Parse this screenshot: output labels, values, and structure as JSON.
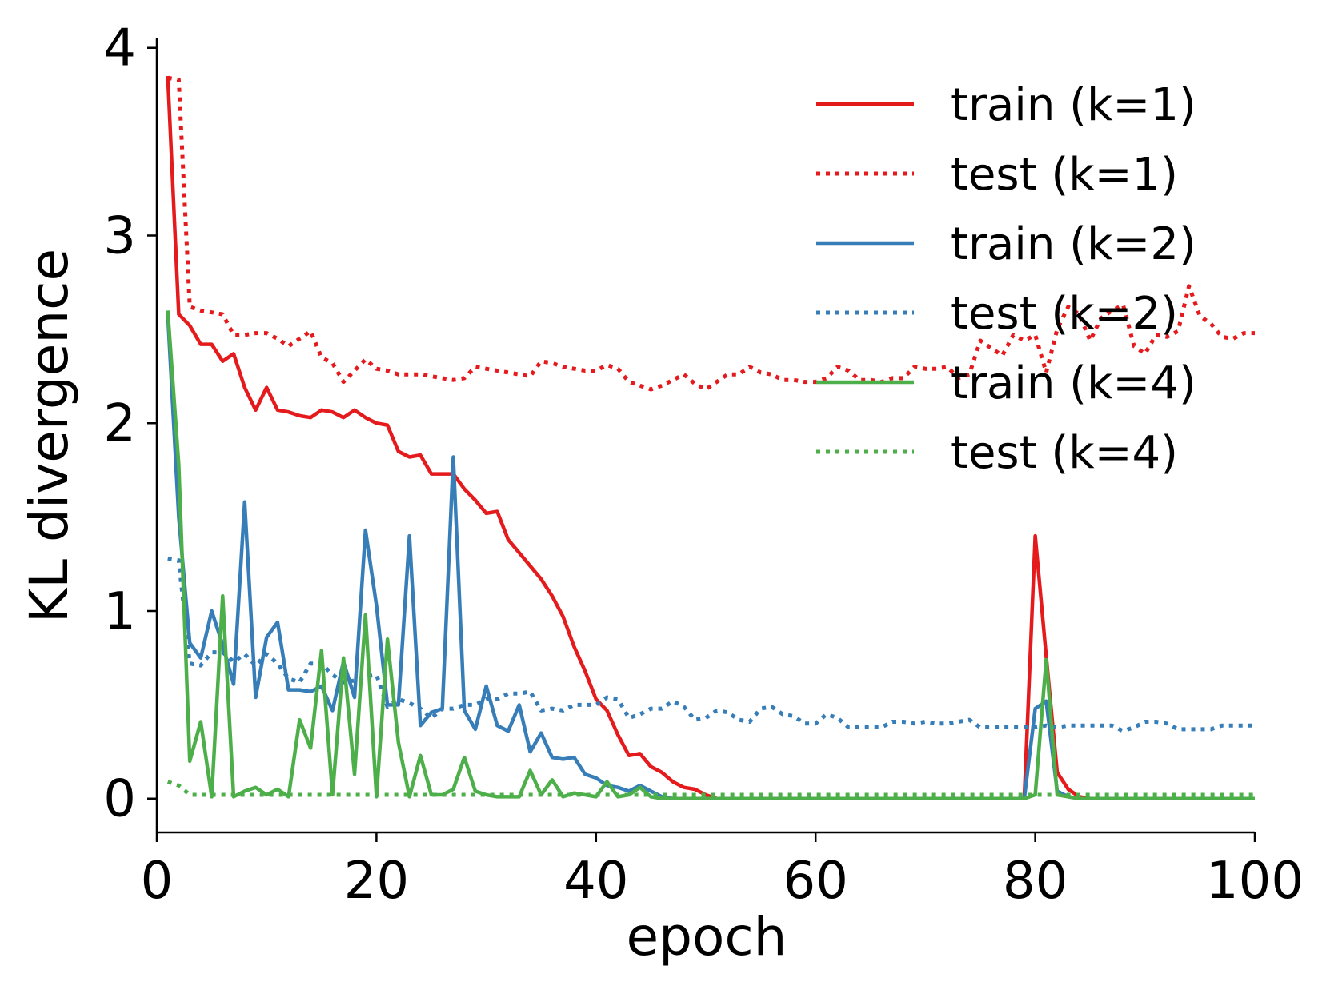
{
  "chart_data": {
    "type": "line",
    "title": "",
    "xlabel": "epoch",
    "ylabel": "KL divergence",
    "xlim": [
      0,
      100
    ],
    "ylim": [
      -0.18,
      4.05
    ],
    "xticks": [
      0,
      20,
      40,
      60,
      80,
      100
    ],
    "yticks": [
      0,
      1,
      2,
      3,
      4
    ],
    "xtick_labels": [
      "0",
      "20",
      "40",
      "60",
      "80",
      "100"
    ],
    "ytick_labels": [
      "0",
      "1",
      "2",
      "3",
      "4"
    ],
    "grid": false,
    "legend_position": "top-right",
    "x": [
      1,
      2,
      3,
      4,
      5,
      6,
      7,
      8,
      9,
      10,
      11,
      12,
      13,
      14,
      15,
      16,
      17,
      18,
      19,
      20,
      21,
      22,
      23,
      24,
      25,
      26,
      27,
      28,
      29,
      30,
      31,
      32,
      33,
      34,
      35,
      36,
      37,
      38,
      39,
      40,
      41,
      42,
      43,
      44,
      45,
      46,
      47,
      48,
      49,
      50,
      51,
      52,
      53,
      54,
      55,
      56,
      57,
      58,
      59,
      60,
      61,
      62,
      63,
      64,
      65,
      66,
      67,
      68,
      69,
      70,
      71,
      72,
      73,
      74,
      75,
      76,
      77,
      78,
      79,
      80,
      81,
      82,
      83,
      84,
      85,
      86,
      87,
      88,
      89,
      90,
      91,
      92,
      93,
      94,
      95,
      96,
      97,
      98,
      99,
      100
    ],
    "series": [
      {
        "name": "train (k=1)",
        "color": "#e41a1c",
        "style": "solid",
        "values": [
          3.85,
          2.58,
          2.52,
          2.42,
          2.42,
          2.33,
          2.37,
          2.19,
          2.07,
          2.19,
          2.07,
          2.06,
          2.04,
          2.03,
          2.07,
          2.06,
          2.03,
          2.07,
          2.03,
          2.0,
          1.99,
          1.85,
          1.82,
          1.83,
          1.73,
          1.73,
          1.73,
          1.65,
          1.59,
          1.52,
          1.53,
          1.38,
          1.31,
          1.24,
          1.17,
          1.08,
          0.97,
          0.81,
          0.68,
          0.53,
          0.47,
          0.34,
          0.23,
          0.24,
          0.17,
          0.14,
          0.09,
          0.06,
          0.05,
          0.02,
          0.0,
          0.0,
          0.0,
          0.0,
          0.0,
          0.0,
          0.0,
          0.0,
          0.0,
          0.0,
          0.0,
          0.0,
          0.0,
          0.0,
          0.0,
          0.0,
          0.0,
          0.0,
          0.0,
          0.0,
          0.0,
          0.0,
          0.0,
          0.0,
          0.0,
          0.0,
          0.0,
          0.0,
          0.0,
          1.4,
          0.76,
          0.14,
          0.05,
          0.01,
          0.0,
          0.0,
          0.0,
          0.0,
          0.0,
          0.0,
          0.0,
          0.0,
          0.0,
          0.0,
          0.0,
          0.0,
          0.0,
          0.0,
          0.0,
          0.0
        ]
      },
      {
        "name": "test (k=1)",
        "color": "#e41a1c",
        "style": "dotted",
        "values": [
          3.84,
          3.83,
          2.62,
          2.6,
          2.59,
          2.58,
          2.47,
          2.47,
          2.48,
          2.48,
          2.45,
          2.41,
          2.45,
          2.49,
          2.35,
          2.32,
          2.22,
          2.28,
          2.34,
          2.29,
          2.28,
          2.26,
          2.26,
          2.26,
          2.25,
          2.24,
          2.23,
          2.24,
          2.3,
          2.29,
          2.28,
          2.27,
          2.26,
          2.25,
          2.33,
          2.32,
          2.3,
          2.29,
          2.28,
          2.28,
          2.31,
          2.29,
          2.22,
          2.2,
          2.18,
          2.2,
          2.23,
          2.26,
          2.21,
          2.18,
          2.22,
          2.26,
          2.26,
          2.3,
          2.27,
          2.26,
          2.23,
          2.23,
          2.22,
          2.22,
          2.24,
          2.3,
          2.28,
          2.23,
          2.23,
          2.22,
          2.24,
          2.24,
          2.3,
          2.29,
          2.29,
          2.3,
          2.24,
          2.26,
          2.44,
          2.4,
          2.36,
          2.47,
          2.44,
          2.47,
          2.27,
          2.5,
          2.62,
          2.58,
          2.44,
          2.56,
          2.6,
          2.63,
          2.41,
          2.37,
          2.47,
          2.46,
          2.49,
          2.73,
          2.57,
          2.53,
          2.46,
          2.45,
          2.48,
          2.48
        ]
      },
      {
        "name": "train (k=2)",
        "color": "#377eb8",
        "style": "solid",
        "values": [
          2.58,
          1.5,
          0.83,
          0.75,
          1.0,
          0.82,
          0.61,
          1.58,
          0.54,
          0.86,
          0.94,
          0.58,
          0.58,
          0.57,
          0.6,
          0.47,
          0.73,
          0.54,
          1.43,
          1.03,
          0.5,
          0.5,
          1.4,
          0.39,
          0.46,
          0.48,
          1.82,
          0.47,
          0.37,
          0.6,
          0.39,
          0.36,
          0.5,
          0.25,
          0.35,
          0.22,
          0.21,
          0.22,
          0.13,
          0.11,
          0.07,
          0.06,
          0.04,
          0.07,
          0.04,
          0.01,
          0.0,
          0.0,
          0.0,
          0.0,
          0.0,
          0.0,
          0.0,
          0.0,
          0.0,
          0.0,
          0.0,
          0.0,
          0.0,
          0.0,
          0.0,
          0.0,
          0.0,
          0.0,
          0.0,
          0.0,
          0.0,
          0.0,
          0.0,
          0.0,
          0.0,
          0.0,
          0.0,
          0.0,
          0.0,
          0.0,
          0.0,
          0.0,
          0.0,
          0.48,
          0.52,
          0.04,
          0.01,
          0.0,
          0.0,
          0.0,
          0.0,
          0.0,
          0.0,
          0.0,
          0.0,
          0.0,
          0.0,
          0.0,
          0.0,
          0.0,
          0.0,
          0.0,
          0.0,
          0.0
        ]
      },
      {
        "name": "test (k=2)",
        "color": "#377eb8",
        "style": "dotted",
        "values": [
          1.28,
          1.27,
          0.72,
          0.71,
          0.78,
          0.78,
          0.73,
          0.77,
          0.71,
          0.77,
          0.72,
          0.64,
          0.62,
          0.72,
          0.72,
          0.66,
          0.62,
          0.63,
          0.65,
          0.66,
          0.49,
          0.53,
          0.51,
          0.48,
          0.43,
          0.48,
          0.48,
          0.5,
          0.5,
          0.53,
          0.53,
          0.56,
          0.56,
          0.57,
          0.47,
          0.48,
          0.47,
          0.5,
          0.5,
          0.5,
          0.54,
          0.53,
          0.43,
          0.45,
          0.48,
          0.48,
          0.52,
          0.49,
          0.42,
          0.43,
          0.47,
          0.46,
          0.42,
          0.41,
          0.48,
          0.49,
          0.45,
          0.44,
          0.4,
          0.4,
          0.45,
          0.43,
          0.38,
          0.38,
          0.38,
          0.38,
          0.41,
          0.41,
          0.4,
          0.41,
          0.4,
          0.4,
          0.41,
          0.42,
          0.38,
          0.38,
          0.38,
          0.38,
          0.38,
          0.38,
          0.39,
          0.38,
          0.39,
          0.39,
          0.39,
          0.39,
          0.39,
          0.36,
          0.38,
          0.41,
          0.41,
          0.4,
          0.37,
          0.37,
          0.37,
          0.37,
          0.39,
          0.39,
          0.39,
          0.39
        ]
      },
      {
        "name": "train (k=4)",
        "color": "#4daf4a",
        "style": "solid",
        "values": [
          2.6,
          1.78,
          0.2,
          0.41,
          0.01,
          1.08,
          0.01,
          0.04,
          0.06,
          0.02,
          0.05,
          0.01,
          0.42,
          0.27,
          0.79,
          0.02,
          0.75,
          0.13,
          0.98,
          0.01,
          0.85,
          0.3,
          0.01,
          0.23,
          0.02,
          0.02,
          0.05,
          0.22,
          0.04,
          0.02,
          0.01,
          0.01,
          0.01,
          0.15,
          0.02,
          0.1,
          0.01,
          0.03,
          0.02,
          0.01,
          0.09,
          0.01,
          0.02,
          0.06,
          0.01,
          0.0,
          0.0,
          0.0,
          0.0,
          0.0,
          0.0,
          0.0,
          0.0,
          0.0,
          0.0,
          0.0,
          0.0,
          0.0,
          0.0,
          0.0,
          0.0,
          0.0,
          0.0,
          0.0,
          0.0,
          0.0,
          0.0,
          0.0,
          0.0,
          0.0,
          0.0,
          0.0,
          0.0,
          0.0,
          0.0,
          0.0,
          0.0,
          0.0,
          0.0,
          0.02,
          0.74,
          0.02,
          0.01,
          0.0,
          0.0,
          0.0,
          0.0,
          0.0,
          0.0,
          0.0,
          0.0,
          0.0,
          0.0,
          0.0,
          0.0,
          0.0,
          0.0,
          0.0,
          0.0,
          0.0
        ]
      },
      {
        "name": "test (k=4)",
        "color": "#4daf4a",
        "style": "dotted",
        "values": [
          0.09,
          0.07,
          0.02,
          0.02,
          0.02,
          0.02,
          0.02,
          0.02,
          0.02,
          0.02,
          0.02,
          0.02,
          0.02,
          0.02,
          0.02,
          0.02,
          0.02,
          0.02,
          0.02,
          0.02,
          0.02,
          0.02,
          0.02,
          0.02,
          0.02,
          0.02,
          0.02,
          0.02,
          0.02,
          0.02,
          0.02,
          0.02,
          0.02,
          0.02,
          0.02,
          0.02,
          0.02,
          0.02,
          0.02,
          0.02,
          0.02,
          0.02,
          0.02,
          0.02,
          0.02,
          0.02,
          0.02,
          0.02,
          0.02,
          0.02,
          0.02,
          0.02,
          0.02,
          0.02,
          0.02,
          0.02,
          0.02,
          0.02,
          0.02,
          0.02,
          0.02,
          0.02,
          0.02,
          0.02,
          0.02,
          0.02,
          0.02,
          0.02,
          0.02,
          0.02,
          0.02,
          0.02,
          0.02,
          0.02,
          0.02,
          0.02,
          0.02,
          0.02,
          0.02,
          0.02,
          0.02,
          0.02,
          0.02,
          0.02,
          0.02,
          0.02,
          0.02,
          0.02,
          0.02,
          0.02,
          0.02,
          0.02,
          0.02,
          0.02,
          0.02,
          0.02,
          0.02,
          0.02,
          0.02,
          0.02
        ]
      }
    ]
  }
}
